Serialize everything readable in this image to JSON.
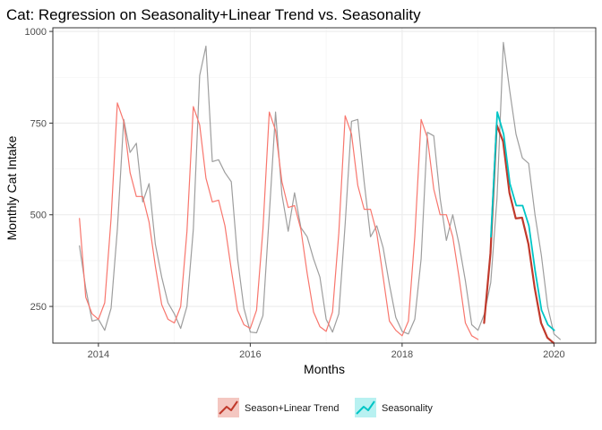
{
  "chart_data": {
    "type": "line",
    "title": "Cat: Regression on Seasonality+Linear Trend vs. Seasonality",
    "xlabel": "Months",
    "ylabel": "Monthly Cat Intake",
    "xlim": [
      2013.4,
      2020.55
    ],
    "ylim": [
      150,
      1010
    ],
    "x_ticks": [
      2014,
      2016,
      2018,
      2020
    ],
    "x_tick_labels": [
      "2014",
      "2016",
      "2018",
      "2020"
    ],
    "y_ticks": [
      250,
      500,
      750,
      1000
    ],
    "y_tick_labels": [
      "250",
      "500",
      "750",
      "1000"
    ],
    "grid": true,
    "legend_position": "bottom",
    "series": [
      {
        "name": "Actual",
        "color": "#9e9e9e",
        "in_legend": false,
        "x_start": 2013.75,
        "x_step": 0.0833333,
        "values": [
          415,
          300,
          210,
          215,
          185,
          245,
          460,
          760,
          670,
          695,
          535,
          585,
          420,
          330,
          260,
          230,
          190,
          250,
          460,
          880,
          960,
          645,
          650,
          615,
          590,
          380,
          245,
          180,
          178,
          225,
          500,
          780,
          555,
          455,
          560,
          465,
          440,
          380,
          330,
          215,
          180,
          230,
          475,
          755,
          760,
          590,
          440,
          470,
          410,
          310,
          220,
          182,
          175,
          215,
          380,
          725,
          715,
          545,
          430,
          500,
          420,
          320,
          200,
          185,
          230,
          315,
          545,
          970,
          840,
          720,
          655,
          640,
          500,
          390,
          250,
          175,
          160
        ]
      },
      {
        "name": "Fitted",
        "color": "#f8766d",
        "in_legend": false,
        "x_start": 2013.75,
        "x_step": 0.0833333,
        "values": [
          490,
          275,
          230,
          215,
          260,
          490,
          805,
          755,
          615,
          550,
          550,
          480,
          360,
          255,
          215,
          205,
          250,
          455,
          795,
          745,
          600,
          535,
          540,
          470,
          350,
          240,
          200,
          190,
          240,
          460,
          780,
          730,
          590,
          520,
          525,
          460,
          340,
          235,
          195,
          182,
          235,
          450,
          770,
          720,
          580,
          515,
          515,
          450,
          330,
          210,
          185,
          170,
          210,
          440,
          760,
          710,
          570,
          500,
          500,
          440,
          330,
          205,
          170,
          160
        ]
      },
      {
        "name": "Season+Linear Trend",
        "color": "#c0392b",
        "in_legend": true,
        "x_start": 2019.08,
        "x_step": 0.0833333,
        "values": [
          205,
          395,
          745,
          700,
          560,
          490,
          492,
          420,
          300,
          205,
          165,
          150
        ]
      },
      {
        "name": "Seasonality",
        "color": "#00c5c6",
        "in_legend": true,
        "x_start": 2019.17,
        "x_step": 0.0833333,
        "values": [
          440,
          780,
          720,
          585,
          525,
          525,
          470,
          345,
          240,
          200,
          185
        ]
      }
    ],
    "legend": [
      {
        "label": "Season+Linear Trend",
        "color": "#c0392b",
        "fill": "#f4c7c1"
      },
      {
        "label": "Seasonality",
        "color": "#00c5c6",
        "fill": "#b8f1f1"
      }
    ]
  }
}
